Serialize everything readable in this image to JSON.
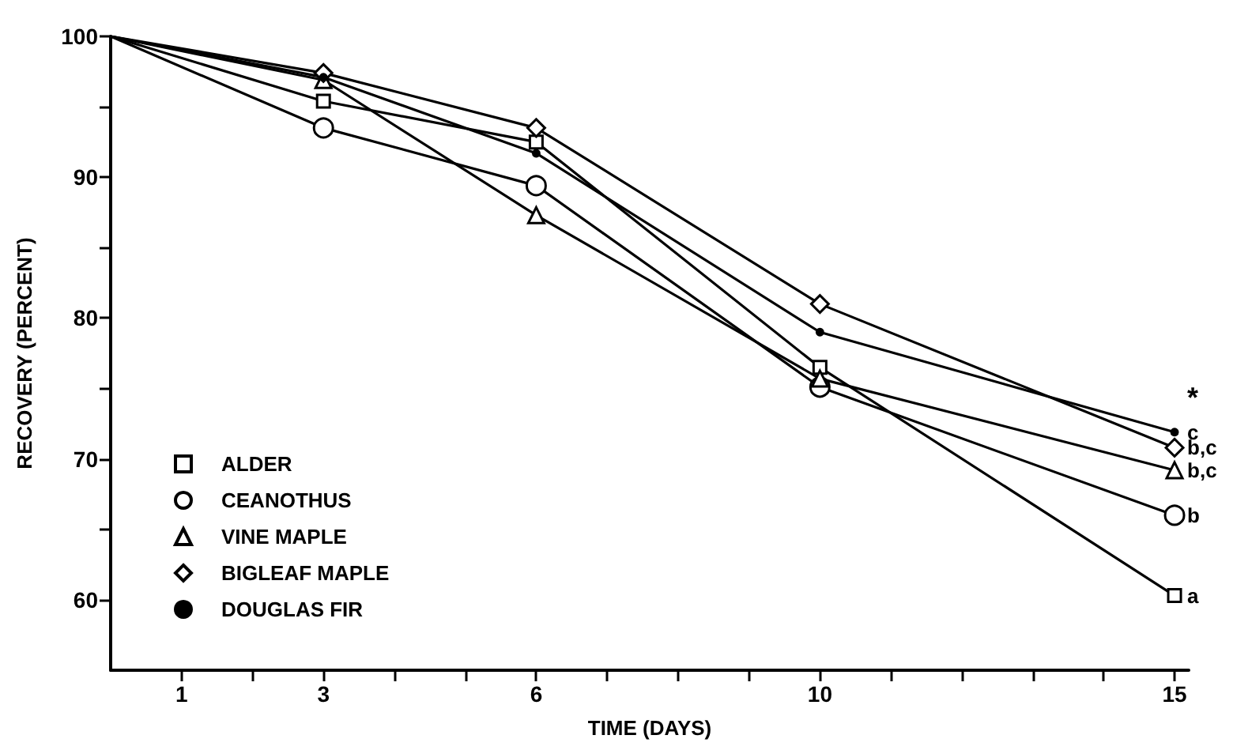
{
  "chart_data": {
    "type": "line",
    "xlabel": "TIME (DAYS)",
    "ylabel": "RECOVERY (PERCENT)",
    "x": [
      0,
      3,
      6,
      10,
      15
    ],
    "series": [
      {
        "name": "ALDER",
        "color": "#000000",
        "marker": "square",
        "values": [
          100,
          95.4,
          92.5,
          76.5,
          60.3
        ]
      },
      {
        "name": "CEANOTHUS",
        "color": "#000000",
        "marker": "circle",
        "values": [
          100,
          93.5,
          89.4,
          75.1,
          66.0
        ]
      },
      {
        "name": "VINE MAPLE",
        "color": "#000000",
        "marker": "triangle",
        "values": [
          100,
          96.9,
          87.3,
          75.7,
          69.2
        ]
      },
      {
        "name": "BIGLEAF MAPLE",
        "color": "#000000",
        "marker": "diamond",
        "values": [
          100,
          97.4,
          93.5,
          81.0,
          70.8
        ]
      },
      {
        "name": "DOUGLAS FIR",
        "color": "#000000",
        "marker": "dot",
        "values": [
          100,
          97.1,
          91.7,
          79.0,
          71.9
        ]
      }
    ],
    "xlim": [
      0,
      15.2
    ],
    "xticks": [
      {
        "value": 1,
        "label": "1"
      },
      {
        "value": 2,
        "label": null
      },
      {
        "value": 3,
        "label": "3"
      },
      {
        "value": 4,
        "label": null
      },
      {
        "value": 5,
        "label": null
      },
      {
        "value": 6,
        "label": "6"
      },
      {
        "value": 7,
        "label": null
      },
      {
        "value": 8,
        "label": null
      },
      {
        "value": 9,
        "label": null
      },
      {
        "value": 10,
        "label": "10"
      },
      {
        "value": 11,
        "label": null
      },
      {
        "value": 12,
        "label": null
      },
      {
        "value": 13,
        "label": null
      },
      {
        "value": 14,
        "label": null
      },
      {
        "value": 15,
        "label": "15"
      }
    ],
    "ylim": [
      55,
      100
    ],
    "yticks": [
      60,
      {
        "value": 65,
        "label": null
      },
      70,
      {
        "value": 75,
        "label": null
      },
      80,
      {
        "value": 85,
        "label": null
      },
      90,
      {
        "value": 95,
        "label": null
      },
      100
    ],
    "grid": false,
    "legend": "bottom left",
    "line_style": "solid",
    "annotations": [
      "*",
      "c",
      "b,c",
      "b,c",
      "b",
      "a"
    ]
  }
}
